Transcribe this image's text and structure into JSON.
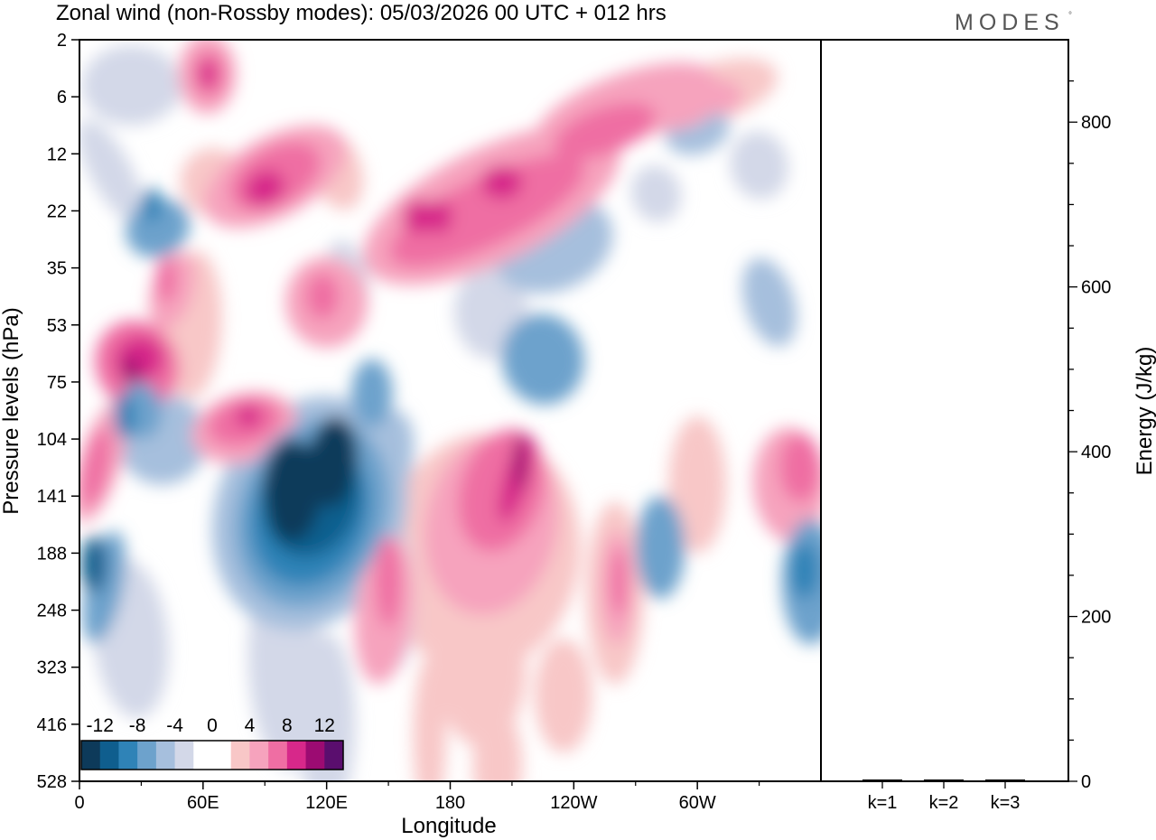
{
  "header": {
    "title": "Zonal wind (non-Rossby modes):  05/03/2026  00 UTC  + 012 hrs",
    "brand": "MODES",
    "brand_mark": "°"
  },
  "chart_data": [
    {
      "type": "heatmap",
      "title": "Zonal wind (non-Rossby modes):  05/03/2026  00 UTC  + 012 hrs",
      "xlabel": "Longitude",
      "ylabel": "Pressure levels (hPa)",
      "x_ticks": [
        "0",
        "60E",
        "120E",
        "180",
        "120W",
        "60W"
      ],
      "x_tick_values": [
        0,
        60,
        120,
        180,
        240,
        300
      ],
      "xlim": [
        0,
        360
      ],
      "y_ticks": [
        "2",
        "6",
        "12",
        "22",
        "35",
        "53",
        "75",
        "104",
        "141",
        "188",
        "248",
        "323",
        "416",
        "528"
      ],
      "y_scale": "ordinal, 2 hPa at top to 528 hPa at bottom",
      "colorbar": {
        "labels": [
          "-12",
          "-8",
          "-4",
          "0",
          "4",
          "8",
          "12"
        ],
        "colors": [
          "#0d3a5a",
          "#0f5e8e",
          "#2f83b7",
          "#6da2cc",
          "#a6bfdd",
          "#d3d8e8",
          "#ffffff",
          "#ffffff",
          "#f8c7c7",
          "#f6a3bd",
          "#ef6ea3",
          "#d7288a",
          "#9c0b72",
          "#5a0e6e"
        ],
        "placement": "bottom-left"
      },
      "features": [
        {
          "name": "negative core",
          "lon": 103,
          "level": "141",
          "value": -14
        },
        {
          "name": "negative core",
          "lon": 123,
          "level": "104",
          "value": -13
        },
        {
          "name": "negative lobe",
          "lon": 0,
          "level": "188",
          "value": -7
        },
        {
          "name": "negative lobe",
          "lon": 360,
          "level": "188",
          "value": -6
        },
        {
          "name": "positive core",
          "lon": 212,
          "level": "104",
          "value": 12
        },
        {
          "name": "positive lobe",
          "lon": 261,
          "level": "141",
          "value": 8
        },
        {
          "name": "positive band",
          "lon": 30,
          "level": "75",
          "value": 10
        },
        {
          "name": "positive band",
          "lon": 95,
          "level": "104",
          "value": 7
        },
        {
          "name": "positive band",
          "lon": 190,
          "level": "22",
          "value": 9
        },
        {
          "name": "positive band",
          "lon": 250,
          "level": "12",
          "value": 6
        },
        {
          "name": "positive band",
          "lon": 65,
          "level": "2",
          "value": 6
        }
      ]
    },
    {
      "type": "bar",
      "categories": [
        "k=1",
        "k=2",
        "k=3"
      ],
      "values": [
        2,
        1.5,
        1.5
      ],
      "ylabel": "Energy (J/kg)",
      "ylim": [
        0,
        900
      ],
      "y_ticks": [
        "0",
        "200",
        "400",
        "600",
        "800"
      ],
      "y_tick_values": [
        0,
        200,
        400,
        600,
        800
      ]
    }
  ]
}
